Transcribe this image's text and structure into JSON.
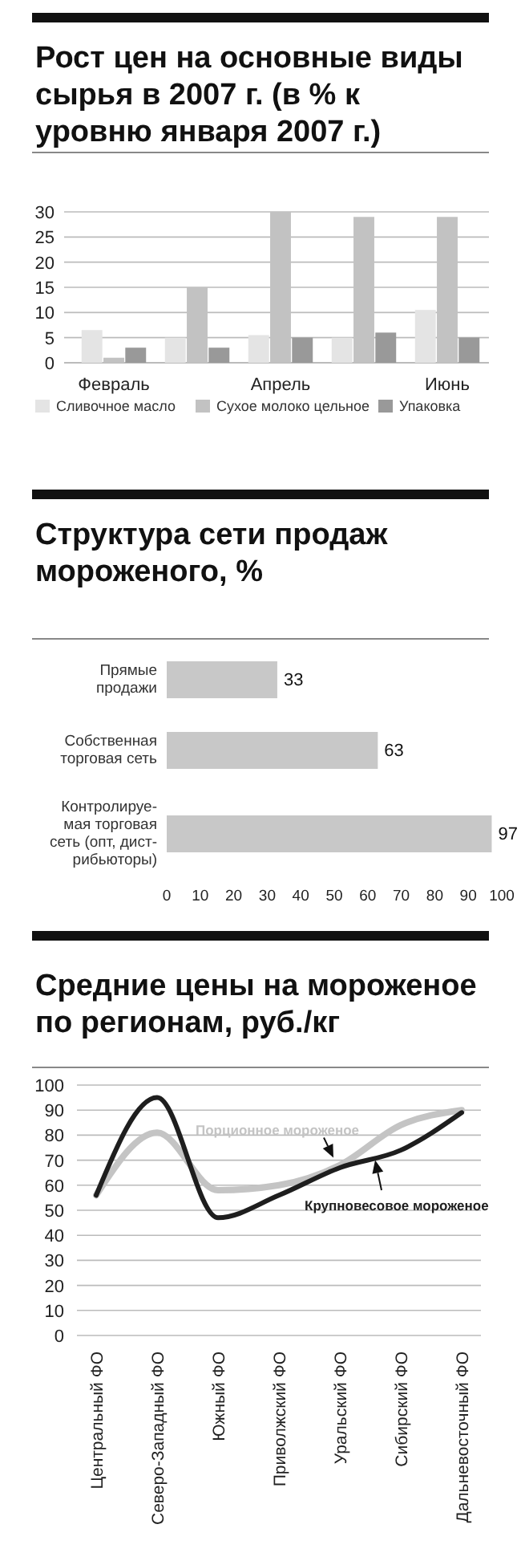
{
  "chart_data": [
    {
      "type": "bar",
      "title": "Рост цен на основные виды сырья в 2007 г. (в % к уровню января 2007 г.)",
      "categories": [
        "Февраль",
        null,
        "Апрель",
        null,
        "Июнь"
      ],
      "series": [
        {
          "name": "Сливочное масло",
          "color": "#e4e4e4",
          "values": [
            6.5,
            5,
            5.5,
            5,
            10.5
          ]
        },
        {
          "name": "Сухое молоко цельное",
          "color": "#c2c2c2",
          "values": [
            1,
            15,
            30,
            29,
            29
          ]
        },
        {
          "name": "Упаковка",
          "color": "#999999",
          "values": [
            3,
            3,
            5,
            6,
            5
          ]
        }
      ],
      "ylim": [
        0,
        30
      ],
      "yticks": [
        0,
        5,
        10,
        15,
        20,
        25,
        30
      ],
      "grid": "y",
      "legend": "bottom"
    },
    {
      "type": "bar",
      "orientation": "horizontal",
      "title": "Структура сети продаж мороженого, %",
      "categories": [
        "Прямые\nпродажи",
        "Собственная\nторговая сеть",
        "Контролируе-\nмая торговая\nсеть (опт, дист-\nрибьюторы)"
      ],
      "values": [
        33,
        63,
        97
      ],
      "color": "#c8c8c8",
      "data_labels": true,
      "xlim": [
        0,
        100
      ],
      "xticks": [
        0,
        10,
        20,
        30,
        40,
        50,
        60,
        70,
        80,
        90,
        100
      ]
    },
    {
      "type": "line",
      "title": "Средние цены на мороженое по регионам, руб./кг",
      "categories": [
        "Центральный ФО",
        "Северо-Западный ФО",
        "Южный ФО",
        "Приволжский ФО",
        "Уральский ФО",
        "Сибирский ФО",
        "Дальневосточный ФО"
      ],
      "series": [
        {
          "name": "Порционное мороженое",
          "color": "#c4c4c4",
          "values": [
            56,
            81,
            58,
            60,
            68,
            84,
            90
          ]
        },
        {
          "name": "Крупновесовое мороженое",
          "color": "#1e1e1e",
          "values": [
            56,
            95,
            47,
            56,
            67,
            74,
            89
          ]
        }
      ],
      "ylim": [
        0,
        100
      ],
      "yticks": [
        0,
        10,
        20,
        30,
        40,
        50,
        60,
        70,
        80,
        90,
        100
      ],
      "grid": "y"
    }
  ]
}
